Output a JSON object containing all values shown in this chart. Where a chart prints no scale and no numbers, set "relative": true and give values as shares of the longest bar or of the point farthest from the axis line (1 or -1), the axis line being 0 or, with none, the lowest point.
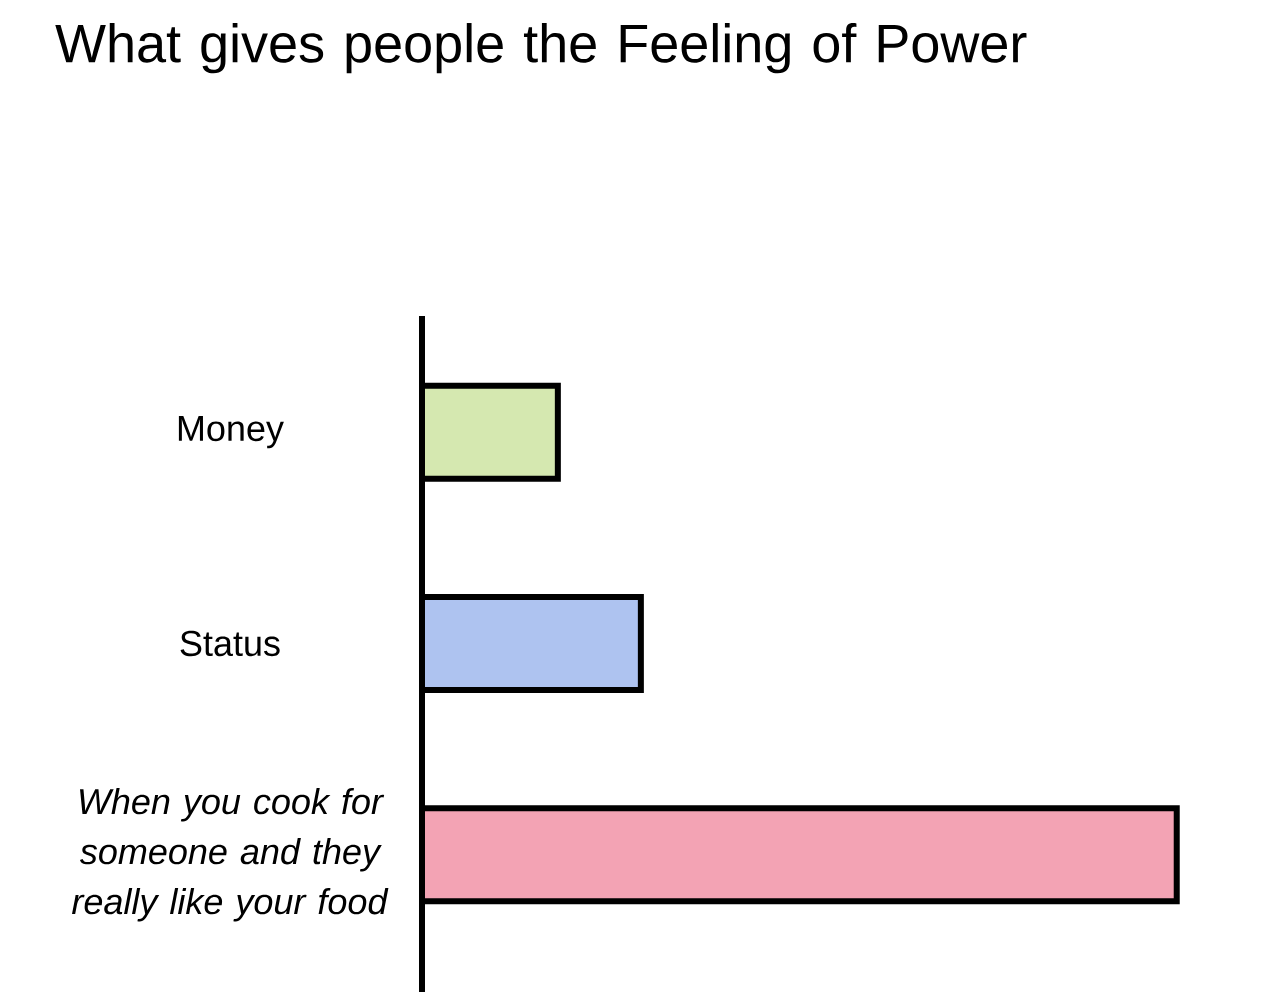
{
  "chart_data": {
    "type": "bar",
    "orientation": "horizontal",
    "relative": true,
    "title": "What gives people the Feeling of Power",
    "categories": [
      "Money",
      "Status",
      "*When you cook for someone and they really like your food*"
    ],
    "values": [
      0.18,
      0.29,
      1
    ],
    "colors": [
      "#d5e8b0",
      "#aec3f0",
      "#f3a3b4"
    ]
  }
}
